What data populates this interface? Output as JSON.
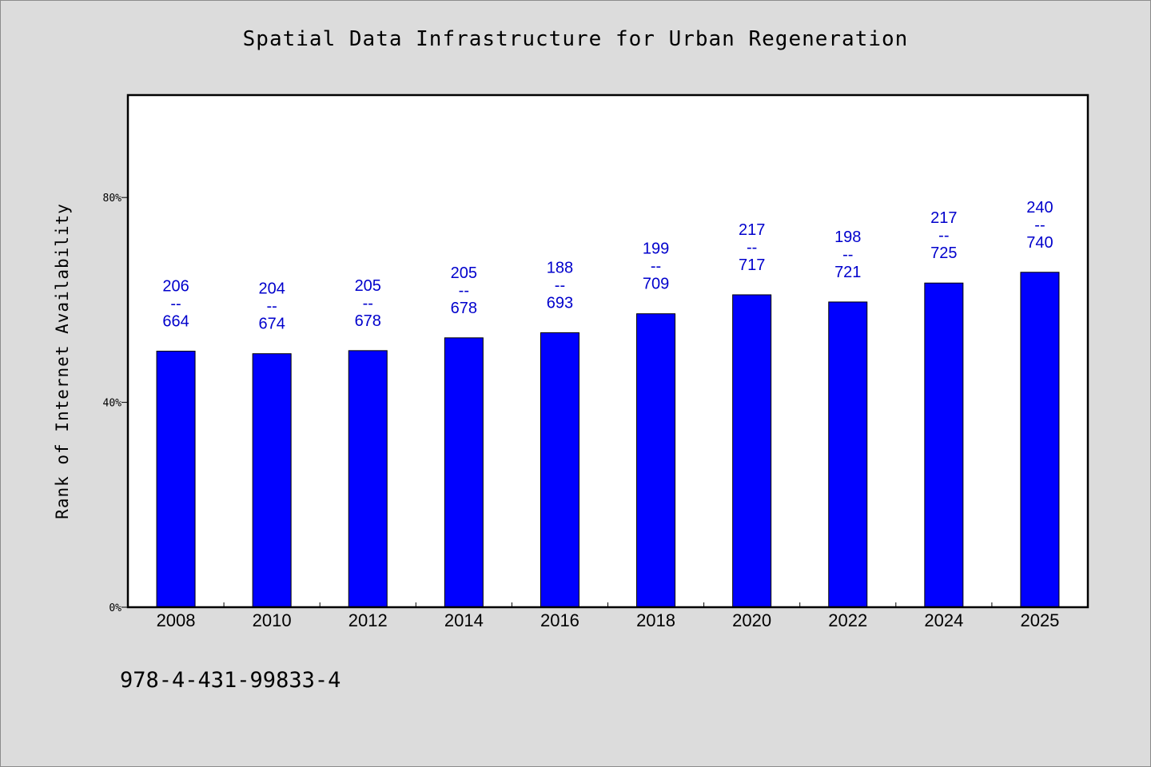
{
  "chart_data": {
    "type": "bar",
    "title": "Spatial Data Infrastructure for Urban Regeneration",
    "xlabel": "",
    "ylabel": "Rank of Internet Availability",
    "categories": [
      "2008",
      "2010",
      "2012",
      "2014",
      "2016",
      "2018",
      "2020",
      "2022",
      "2024",
      "2025"
    ],
    "values": [
      50.0,
      49.5,
      50.1,
      52.6,
      53.6,
      57.3,
      61.0,
      59.6,
      63.3,
      65.4
    ],
    "data_labels": [
      {
        "top": "206",
        "sep": "--",
        "bottom": "664"
      },
      {
        "top": "204",
        "sep": "--",
        "bottom": "674"
      },
      {
        "top": "205",
        "sep": "--",
        "bottom": "678"
      },
      {
        "top": "205",
        "sep": "--",
        "bottom": "678"
      },
      {
        "top": "188",
        "sep": "--",
        "bottom": "693"
      },
      {
        "top": "199",
        "sep": "--",
        "bottom": "709"
      },
      {
        "top": "217",
        "sep": "--",
        "bottom": "717"
      },
      {
        "top": "198",
        "sep": "--",
        "bottom": "721"
      },
      {
        "top": "217",
        "sep": "--",
        "bottom": "725"
      },
      {
        "top": "240",
        "sep": "--",
        "bottom": "740"
      }
    ],
    "yticks": [
      {
        "value": 0,
        "label": "0%"
      },
      {
        "value": 40,
        "label": "40%"
      },
      {
        "value": 80,
        "label": "80%"
      }
    ],
    "ylim": [
      0,
      100
    ],
    "grid": false,
    "legend": "none",
    "colors": {
      "bar": "#0000ff",
      "label": "#0000cc",
      "plot_bg": "#ffffff",
      "page_bg": "#dcdcdc"
    }
  },
  "footer": {
    "code": "978-4-431-99833-4"
  }
}
